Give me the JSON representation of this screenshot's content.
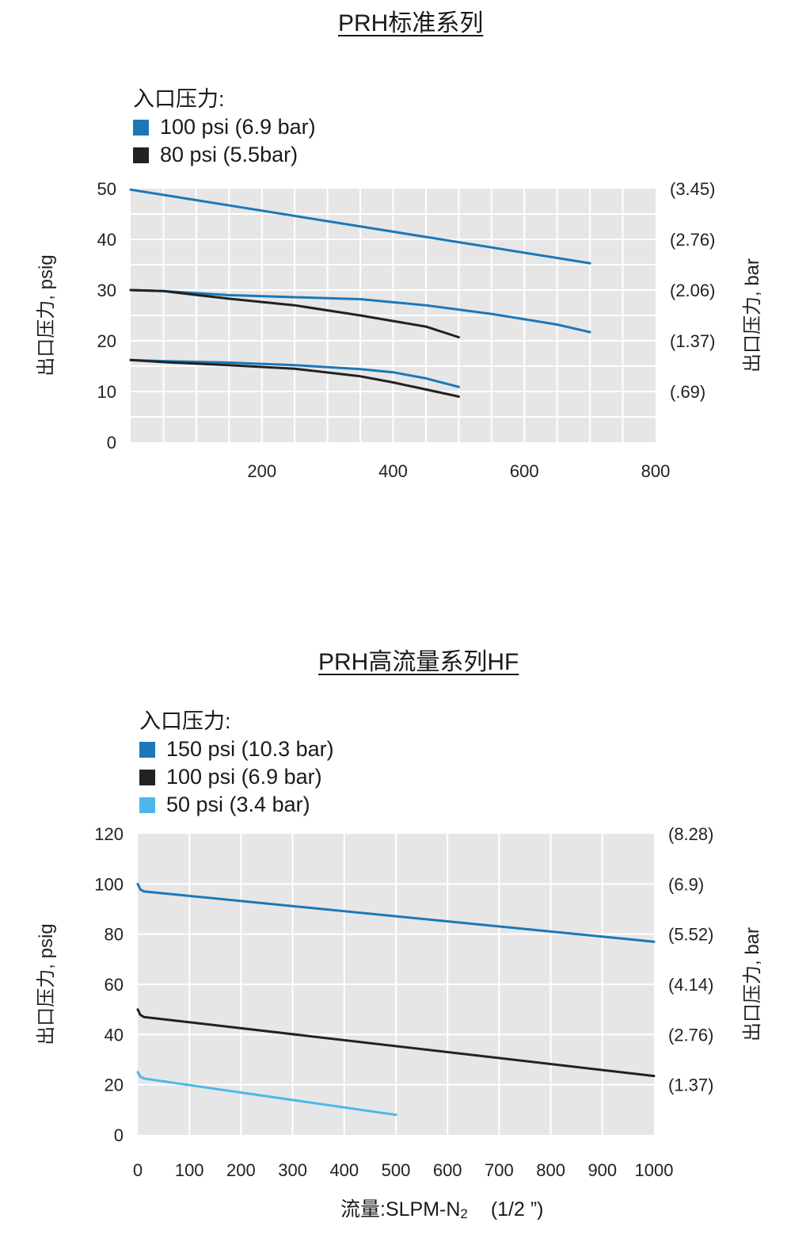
{
  "charts": [
    {
      "title": "PRH标准系列",
      "legend_title": "入口压力:",
      "legend": [
        {
          "label": "100 psi (6.9 bar)",
          "color": "#1b78b8"
        },
        {
          "label": "80 psi (5.5bar)",
          "color": "#222222"
        }
      ]
    },
    {
      "title": "PRH高流量系列HF",
      "legend_title": "入口压力:",
      "legend": [
        {
          "label": "150 psi (10.3 bar)",
          "color": "#1b78b8"
        },
        {
          "label": "100 psi (6.9 bar)",
          "color": "#222222"
        },
        {
          "label": "50 psi (3.4 bar)",
          "color": "#4db8e8"
        }
      ]
    }
  ],
  "xlabel_main": "流量:SLPM-N",
  "xlabel_sub": "2",
  "xlabel_suffix": "(1/2 ”)",
  "chart_data": [
    {
      "type": "line",
      "title": "PRH标准系列",
      "ylabel": "出口压力, psig",
      "y2label": "出口压力, bar",
      "xlim": [
        0,
        800
      ],
      "ylim": [
        0,
        50
      ],
      "x_ticks": [
        200,
        400,
        600,
        800
      ],
      "y_ticks": [
        0,
        10,
        20,
        30,
        40,
        50
      ],
      "y2_ticks": [
        {
          "y": 10,
          "label": "(.69)"
        },
        {
          "y": 20,
          "label": "(1.37)"
        },
        {
          "y": 30,
          "label": "(2.06)"
        },
        {
          "y": 40,
          "label": "(2.76)"
        },
        {
          "y": 50,
          "label": "(3.45)"
        }
      ],
      "grid": true,
      "legend_position": "top-left",
      "series": [
        {
          "name": "100 psi (6.9 bar)",
          "color": "#1b78b8",
          "x": [
            0,
            700
          ],
          "y": [
            49.8,
            35.3
          ]
        },
        {
          "name": "100 psi (6.9 bar)",
          "color": "#1b78b8",
          "x": [
            0,
            50,
            150,
            250,
            350,
            450,
            550,
            650,
            700
          ],
          "y": [
            30.0,
            29.8,
            29.0,
            28.6,
            28.2,
            27.0,
            25.3,
            23.2,
            21.7
          ]
        },
        {
          "name": "80 psi (5.5bar)",
          "color": "#222222",
          "x": [
            0,
            50,
            150,
            250,
            350,
            450,
            500
          ],
          "y": [
            30.0,
            29.8,
            28.3,
            27.0,
            25.0,
            22.8,
            20.7
          ]
        },
        {
          "name": "100 psi (6.9 bar)",
          "color": "#1b78b8",
          "x": [
            0,
            50,
            150,
            250,
            350,
            400,
            450,
            500
          ],
          "y": [
            16.2,
            16.0,
            15.7,
            15.2,
            14.4,
            13.8,
            12.6,
            10.9
          ]
        },
        {
          "name": "80 psi (5.5bar)",
          "color": "#222222",
          "x": [
            0,
            50,
            150,
            250,
            350,
            400,
            450,
            500
          ],
          "y": [
            16.2,
            15.8,
            15.2,
            14.5,
            13.0,
            11.8,
            10.4,
            9.0
          ]
        }
      ]
    },
    {
      "type": "line",
      "title": "PRH高流量系列HF",
      "xlabel": "流量:SLPM-N2 (1/2 ”)",
      "ylabel": "出口压力, psig",
      "y2label": "出口压力, bar",
      "xlim": [
        0,
        1000
      ],
      "ylim": [
        0,
        120
      ],
      "x_ticks": [
        0,
        100,
        200,
        300,
        400,
        500,
        600,
        700,
        800,
        900,
        1000
      ],
      "y_ticks": [
        0,
        20,
        40,
        60,
        80,
        100,
        120
      ],
      "y2_ticks": [
        {
          "y": 20,
          "label": "(1.37)"
        },
        {
          "y": 40,
          "label": "(2.76)"
        },
        {
          "y": 60,
          "label": "(4.14)"
        },
        {
          "y": 80,
          "label": "(5.52)"
        },
        {
          "y": 100,
          "label": "(6.9)"
        },
        {
          "y": 120,
          "label": "(8.28)"
        }
      ],
      "grid": true,
      "legend_position": "top-left",
      "series": [
        {
          "name": "150 psi (10.3 bar)",
          "color": "#1b78b8",
          "x": [
            0,
            5,
            12,
            1000
          ],
          "y": [
            100,
            97.8,
            97.0,
            77.0
          ]
        },
        {
          "name": "100 psi (6.9 bar)",
          "color": "#222222",
          "x": [
            0,
            5,
            12,
            1000
          ],
          "y": [
            50,
            47.8,
            47.0,
            23.5
          ]
        },
        {
          "name": "50 psi (3.4 bar)",
          "color": "#4db8e8",
          "x": [
            0,
            5,
            12,
            500
          ],
          "y": [
            25,
            23.2,
            22.5,
            8.0
          ]
        }
      ]
    }
  ]
}
